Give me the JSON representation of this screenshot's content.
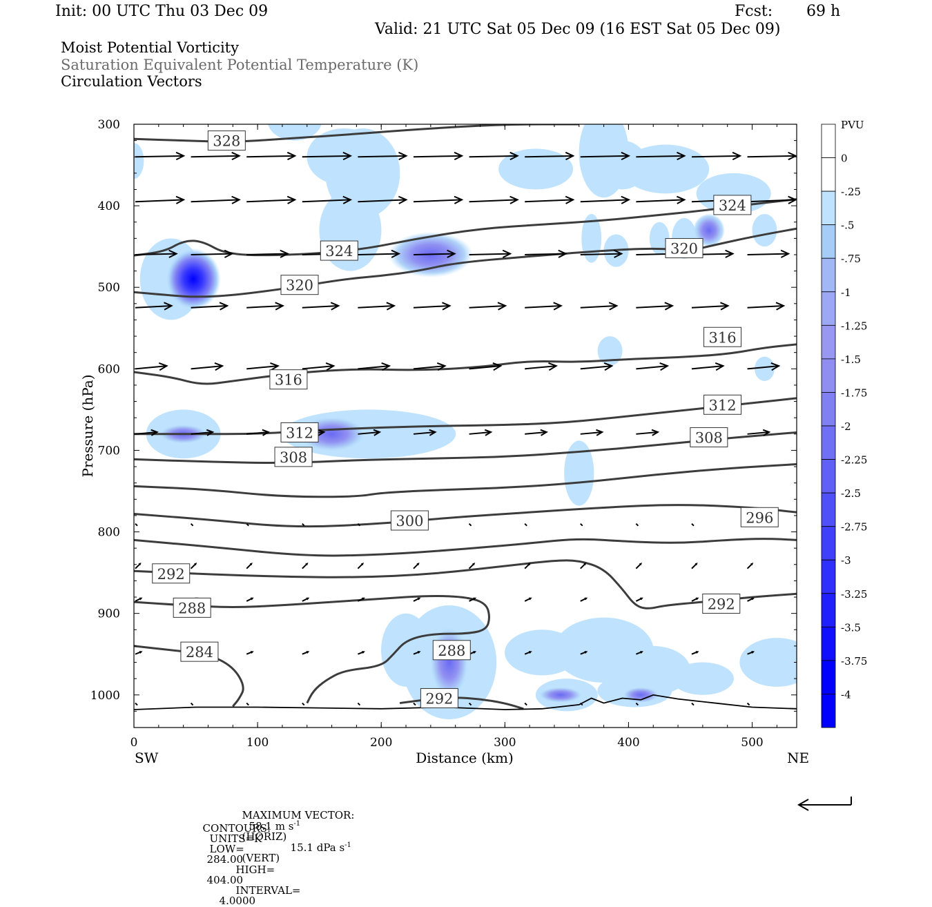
{
  "header": {
    "init": "Init: 00 UTC Thu 03 Dec 09",
    "fcst_label": "Fcst:",
    "fcst_value": "69 h",
    "valid": "Valid: 21 UTC Sat 05 Dec 09 (16 EST Sat 05 Dec 09)"
  },
  "fields": [
    "Moist Potential Vorticity",
    "Saturation Equivalent Potential Temperature (K)",
    "Circulation Vectors"
  ],
  "footer": {
    "max_vector_label": "MAXIMUM VECTOR:",
    "horiz_value": "58.1 m s",
    "horiz_unit": "(HORIZ)",
    "vert_value": "15.1 dPa s",
    "vert_unit": "(VERT)",
    "sup": "-1",
    "contours_label": "CONTOURS:",
    "units": "UNITS=K",
    "low_label": "LOW=",
    "low": "284.00",
    "high_label": "HIGH=",
    "high": "404.00",
    "interval_label": "INTERVAL=",
    "interval": "4.0000"
  },
  "colors": {
    "contour": "#3c3c3c",
    "pv_light": "#b8e0ff",
    "pv_mid": "#8f8ff2",
    "pv_strong": "#0000ff"
  },
  "chart_data": {
    "type": "heatmap",
    "xlabel": "Distance (km)",
    "ylabel": "Pressure (hPa)",
    "x_left_end": "SW",
    "x_right_end": "NE",
    "xlim": [
      0,
      536
    ],
    "ylim": [
      1040,
      300
    ],
    "x_ticks": [
      0,
      100,
      200,
      300,
      400,
      500
    ],
    "y_ticks": [
      300,
      400,
      500,
      600,
      700,
      800,
      900,
      1000
    ],
    "colorbar": {
      "unit": "PVU",
      "levels": [
        0,
        -0.25,
        -0.5,
        -0.75,
        -1,
        -1.25,
        -1.5,
        -1.75,
        -2,
        -2.25,
        -2.5,
        -2.75,
        -3,
        -3.25,
        -3.5,
        -3.75,
        -4
      ],
      "labels": [
        "0",
        "-.25",
        "-.5",
        "-.75",
        "-1",
        "-1.25",
        "-1.5",
        "-1.75",
        "-2",
        "-2.25",
        "-2.5",
        "-2.75",
        "-3",
        "-3.25",
        "-3.5",
        "-3.75",
        "-4"
      ]
    },
    "contours": [
      {
        "value": 328,
        "label": "328",
        "label_at": [
          75,
          320
        ],
        "points": [
          [
            0,
            318
          ],
          [
            40,
            320
          ],
          [
            80,
            322
          ],
          [
            120,
            318
          ],
          [
            170,
            313
          ],
          [
            230,
            306
          ],
          [
            300,
            300
          ],
          [
            360,
            300
          ]
        ]
      },
      {
        "value": 324,
        "label": "324",
        "label_at": [
          166,
          455
        ],
        "points": [
          [
            0,
            461
          ],
          [
            25,
            456
          ],
          [
            40,
            443
          ],
          [
            55,
            443
          ],
          [
            75,
            460
          ],
          [
            120,
            461
          ],
          [
            180,
            455
          ],
          [
            230,
            440
          ],
          [
            280,
            428
          ],
          [
            330,
            423
          ],
          [
            380,
            418
          ],
          [
            420,
            412
          ],
          [
            460,
            406
          ],
          [
            500,
            398
          ],
          [
            536,
            392
          ]
        ]
      },
      {
        "value": 324,
        "label": "324",
        "label_at": [
          484,
          399
        ],
        "points": []
      },
      {
        "value": 320,
        "label": "320",
        "label_at": [
          134,
          497
        ],
        "points": [
          [
            0,
            506
          ],
          [
            30,
            510
          ],
          [
            50,
            512
          ],
          [
            80,
            510
          ],
          [
            130,
            500
          ],
          [
            170,
            490
          ],
          [
            200,
            486
          ],
          [
            230,
            480
          ],
          [
            260,
            470
          ],
          [
            320,
            462
          ],
          [
            380,
            455
          ],
          [
            420,
            452
          ],
          [
            450,
            455
          ],
          [
            470,
            448
          ],
          [
            500,
            438
          ],
          [
            536,
            428
          ]
        ]
      },
      {
        "value": 320,
        "label": "320",
        "label_at": [
          445,
          452
        ],
        "points": []
      },
      {
        "value": 316,
        "label": "316",
        "label_at": [
          125,
          613
        ],
        "points": [
          [
            0,
            604
          ],
          [
            30,
            610
          ],
          [
            55,
            620
          ],
          [
            80,
            615
          ],
          [
            130,
            605
          ],
          [
            180,
            600
          ],
          [
            230,
            602
          ],
          [
            280,
            598
          ],
          [
            320,
            590
          ],
          [
            360,
            592
          ],
          [
            400,
            588
          ],
          [
            440,
            586
          ],
          [
            480,
            582
          ],
          [
            510,
            574
          ],
          [
            536,
            570
          ]
        ]
      },
      {
        "value": 316,
        "label": "316",
        "label_at": [
          476,
          561
        ],
        "points": []
      },
      {
        "value": 312,
        "label": "312",
        "label_at": [
          134,
          678
        ],
        "points": [
          [
            0,
            680
          ],
          [
            50,
            680
          ],
          [
            100,
            680
          ],
          [
            150,
            675
          ],
          [
            200,
            672
          ],
          [
            250,
            670
          ],
          [
            300,
            669
          ],
          [
            350,
            666
          ],
          [
            400,
            658
          ],
          [
            450,
            650
          ],
          [
            500,
            642
          ],
          [
            536,
            636
          ]
        ]
      },
      {
        "value": 312,
        "label": "312",
        "label_at": [
          476,
          644
        ],
        "points": []
      },
      {
        "value": 308,
        "label": "308",
        "label_at": [
          129,
          708
        ],
        "points": [
          [
            0,
            711
          ],
          [
            60,
            714
          ],
          [
            120,
            716
          ],
          [
            180,
            712
          ],
          [
            240,
            710
          ],
          [
            300,
            708
          ],
          [
            360,
            702
          ],
          [
            420,
            694
          ],
          [
            480,
            685
          ],
          [
            536,
            678
          ]
        ]
      },
      {
        "value": 308,
        "label": "308",
        "label_at": [
          465,
          684
        ],
        "points": []
      },
      {
        "value": 304,
        "label": "",
        "label_at": null,
        "points": [
          [
            0,
            744
          ],
          [
            60,
            748
          ],
          [
            120,
            757
          ],
          [
            180,
            757
          ],
          [
            200,
            752
          ],
          [
            240,
            749
          ],
          [
            300,
            746
          ],
          [
            360,
            740
          ],
          [
            420,
            730
          ],
          [
            480,
            722
          ],
          [
            536,
            717
          ]
        ]
      },
      {
        "value": 300,
        "label": "300",
        "label_at": [
          223,
          786
        ],
        "points": [
          [
            0,
            778
          ],
          [
            60,
            785
          ],
          [
            130,
            795
          ],
          [
            200,
            790
          ],
          [
            260,
            782
          ],
          [
            320,
            776
          ],
          [
            380,
            770
          ],
          [
            440,
            766
          ],
          [
            500,
            770
          ],
          [
            536,
            776
          ]
        ]
      },
      {
        "value": 296,
        "label": "296",
        "label_at": [
          506,
          782
        ],
        "points": [
          [
            0,
            810
          ],
          [
            60,
            818
          ],
          [
            140,
            830
          ],
          [
            200,
            828
          ],
          [
            260,
            822
          ],
          [
            320,
            814
          ],
          [
            360,
            808
          ],
          [
            400,
            812
          ],
          [
            440,
            814
          ],
          [
            480,
            810
          ],
          [
            510,
            808
          ],
          [
            536,
            810
          ]
        ]
      },
      {
        "value": 292,
        "label": "292",
        "label_at": [
          30,
          851
        ],
        "points": [
          [
            0,
            848
          ],
          [
            60,
            852
          ],
          [
            120,
            855
          ],
          [
            180,
            856
          ],
          [
            240,
            852
          ],
          [
            300,
            842
          ],
          [
            340,
            835
          ],
          [
            360,
            835
          ],
          [
            380,
            845
          ],
          [
            395,
            870
          ],
          [
            405,
            890
          ],
          [
            415,
            895
          ],
          [
            430,
            890
          ],
          [
            460,
            886
          ],
          [
            500,
            880
          ],
          [
            536,
            876
          ]
        ]
      },
      {
        "value": 292,
        "label": "292",
        "label_at": [
          475,
          888
        ],
        "points": []
      },
      {
        "value": 288,
        "label": "288",
        "label_at": [
          47,
          893
        ],
        "points": [
          [
            0,
            886
          ],
          [
            40,
            890
          ],
          [
            80,
            893
          ],
          [
            120,
            890
          ],
          [
            160,
            886
          ],
          [
            200,
            882
          ],
          [
            240,
            878
          ],
          [
            270,
            880
          ],
          [
            285,
            888
          ],
          [
            288,
            905
          ],
          [
            285,
            920
          ],
          [
            270,
            925
          ],
          [
            240,
            925
          ],
          [
            220,
            933
          ],
          [
            210,
            950
          ],
          [
            200,
            965
          ],
          [
            170,
            970
          ],
          [
            155,
            982
          ],
          [
            145,
            995
          ],
          [
            140,
            1010
          ]
        ]
      },
      {
        "value": 288,
        "label": "288",
        "label_at": [
          257,
          945
        ],
        "points": []
      },
      {
        "value": 284,
        "label": "284",
        "label_at": [
          53,
          947
        ],
        "points": [
          [
            0,
            940
          ],
          [
            30,
            945
          ],
          [
            60,
            950
          ],
          [
            80,
            965
          ],
          [
            90,
            990
          ],
          [
            85,
            1005
          ],
          [
            80,
            1014
          ]
        ]
      },
      {
        "value": 292,
        "label": "292",
        "label_at": [
          247,
          1004
        ],
        "points": [
          [
            215,
            1010
          ],
          [
            240,
            1005
          ],
          [
            260,
            1003
          ],
          [
            280,
            1005
          ],
          [
            300,
            1010
          ],
          [
            315,
            1017
          ]
        ]
      }
    ],
    "pv_regions": [
      {
        "label": "upper-west blob",
        "x": 0,
        "p": 350,
        "rx": 6,
        "rp": 20,
        "pv": -0.3
      },
      {
        "label": "strong blob",
        "x": 48,
        "p": 490,
        "rx": 16,
        "rp": 45,
        "pv": -4.0
      },
      {
        "label": "strong blob halo",
        "x": 48,
        "p": 480,
        "rx": 28,
        "rp": 70,
        "pv": -0.4
      },
      {
        "label": "mid blob",
        "x": 240,
        "p": 460,
        "rx": 35,
        "rp": 30,
        "pv": -2.0
      },
      {
        "label": "upper blob",
        "x": 340,
        "p": 340,
        "rx": 28,
        "rp": 38,
        "pv": -0.3
      },
      {
        "label": "ne blob",
        "x": 465,
        "p": 428,
        "rx": 12,
        "rp": 18,
        "pv": -2.2
      },
      {
        "label": "low-level blob",
        "x": 255,
        "p": 960,
        "rx": 20,
        "rp": 60,
        "pv": -1.0
      },
      {
        "label": "lower blob",
        "x": 190,
        "p": 680,
        "rx": 40,
        "rp": 25,
        "pv": -1.5
      }
    ],
    "vector_rows": [
      {
        "p": 340,
        "u": 1.0,
        "w": 0.05
      },
      {
        "p": 395,
        "u": 1.0,
        "w": 0.1
      },
      {
        "p": 460,
        "u": 0.85,
        "w": 0.05
      },
      {
        "p": 525,
        "u": 0.75,
        "w": 0.1
      },
      {
        "p": 600,
        "u": 0.65,
        "w": 0.15
      },
      {
        "p": 680,
        "u": 0.45,
        "w": 0.1
      },
      {
        "p": 790,
        "u": 0.03,
        "w": 0.03
      },
      {
        "p": 845,
        "u": 0.1,
        "w": 0.25
      },
      {
        "p": 885,
        "u": 0.12,
        "w": 0.15
      },
      {
        "p": 950,
        "u": 0.12,
        "w": 0.12
      },
      {
        "p": 1010,
        "u": 0.04,
        "w": 0.02
      }
    ]
  }
}
